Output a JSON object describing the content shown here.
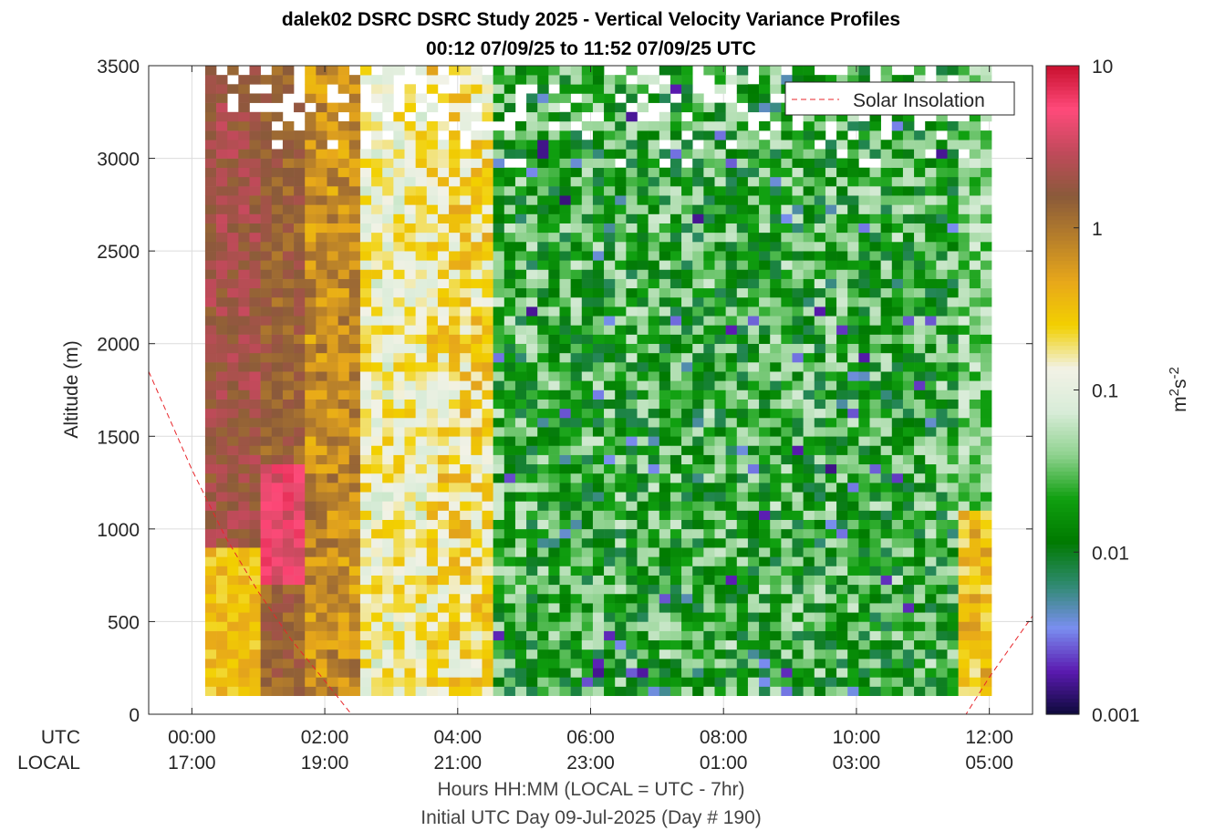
{
  "chart_data": {
    "type": "heatmap",
    "title_line1": "dalek02 DSRC DSRC Study 2025 - Vertical Velocity Variance Profiles",
    "title_line2": "00:12 07/09/25 to 11:52 07/09/25  UTC",
    "ylabel": "Altitude (m)",
    "xlabel": "Hours HH:MM  (LOCAL = UTC - 7hr)",
    "footnote": "Initial UTC Day 09-Jul-2025 (Day # 190)",
    "ylim": [
      0,
      3500
    ],
    "xlim_hours_utc": [
      -0.65,
      12.65
    ],
    "y_ticks": [
      0,
      500,
      1000,
      1500,
      2000,
      2500,
      3000,
      3500
    ],
    "y_tick_labels": [
      "0",
      "500",
      "1000",
      "1500",
      "2000",
      "2500",
      "3000",
      "3500"
    ],
    "x_row_labels": {
      "utc": "UTC",
      "local": "LOCAL"
    },
    "x_ticks_hours": [
      0,
      2,
      4,
      6,
      8,
      10,
      12
    ],
    "x_tick_labels_utc": [
      "00:00",
      "02:00",
      "04:00",
      "06:00",
      "08:00",
      "10:00",
      "12:00"
    ],
    "x_tick_labels_local": [
      "17:00",
      "19:00",
      "21:00",
      "23:00",
      "01:00",
      "03:00",
      "05:00"
    ],
    "grid": true,
    "legend": {
      "label": "Solar Insolation",
      "position": "top-right",
      "color": "#e8262b",
      "style": "dashed"
    },
    "colorbar": {
      "scale": "log",
      "range": [
        0.001,
        10
      ],
      "tick_values": [
        0.001,
        0.01,
        0.1,
        1,
        10
      ],
      "tick_labels": [
        "0.001",
        "0.01",
        "0.1",
        "1",
        "10"
      ],
      "label": "m2s-2",
      "colors": [
        "#0d0a3a",
        "#5a1ab0",
        "#7a8ef0",
        "#2f8a70",
        "#007a00",
        "#10a010",
        "#8fd28f",
        "#d8ecd8",
        "#f2f2e6",
        "#f2d000",
        "#e8a81a",
        "#b8802a",
        "#8a5a3a",
        "#c04a5a",
        "#ff4a7a",
        "#c8102e"
      ]
    },
    "time_range_hours_utc": [
      0.2,
      11.87
    ],
    "altitude_range_m": [
      100,
      3500
    ],
    "regimes": [
      {
        "from_hours": 0.2,
        "to_hours": 2.5,
        "typical_variance": "0.3-5",
        "colors": "pink/brown/orange"
      },
      {
        "from_hours": 2.5,
        "to_hours": 4.5,
        "typical_variance": "0.05-0.5",
        "colors": "yellow/pale green"
      },
      {
        "from_hours": 4.5,
        "to_hours": 11.5,
        "typical_variance": "0.002-0.05",
        "colors": "green/blue"
      },
      {
        "from_hours": 11.5,
        "to_hours": 11.87,
        "typical_variance": "0.05-0.5",
        "colors": "yellow near surface"
      }
    ],
    "solar_insolation_curve": [
      {
        "hour_utc": -0.65,
        "alt_m": 1850
      },
      {
        "hour_utc": 0,
        "alt_m": 1320
      },
      {
        "hour_utc": 0.5,
        "alt_m": 960
      },
      {
        "hour_utc": 1,
        "alt_m": 660
      },
      {
        "hour_utc": 1.5,
        "alt_m": 400
      },
      {
        "hour_utc": 2,
        "alt_m": 180
      },
      {
        "hour_utc": 2.4,
        "alt_m": 0
      },
      {
        "hour_utc": 11.65,
        "alt_m": 0
      },
      {
        "hour_utc": 12.0,
        "alt_m": 200
      },
      {
        "hour_utc": 12.65,
        "alt_m": 530
      }
    ]
  }
}
